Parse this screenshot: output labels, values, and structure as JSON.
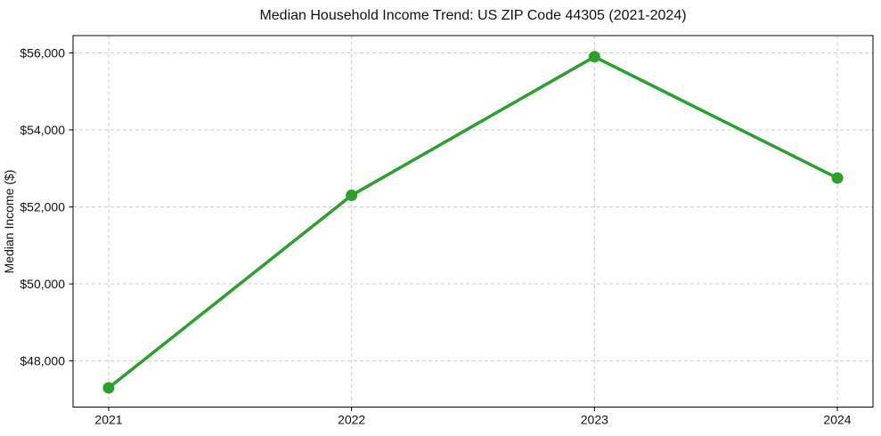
{
  "chart": {
    "title": "Median Household Income Trend: US ZIP Code 44305 (2021-2024)",
    "ylabel": "Median Income ($)"
  },
  "chart_data": {
    "type": "line",
    "title": "Median Household Income Trend: US ZIP Code 44305 (2021-2024)",
    "xlabel": "",
    "ylabel": "Median Income ($)",
    "x": [
      2021,
      2022,
      2023,
      2024
    ],
    "x_tick_labels": [
      "2021",
      "2022",
      "2023",
      "2024"
    ],
    "series": [
      {
        "name": "",
        "values": [
          47300,
          52300,
          55900,
          52750
        ],
        "color": "#2ca02c",
        "marker": "circle",
        "line_width": 3.5,
        "marker_radius": 6.5
      }
    ],
    "yticks": [
      48000,
      50000,
      52000,
      54000,
      56000
    ],
    "y_tick_labels": [
      "$48,000",
      "$50,000",
      "$52,000",
      "$54,000",
      "$56,000"
    ],
    "ylim": [
      46800,
      56450
    ],
    "grid": true,
    "grid_color": "#cccccc",
    "grid_style": "dashed",
    "legend": false,
    "spine_color": "#000000",
    "background": "#ffffff"
  }
}
